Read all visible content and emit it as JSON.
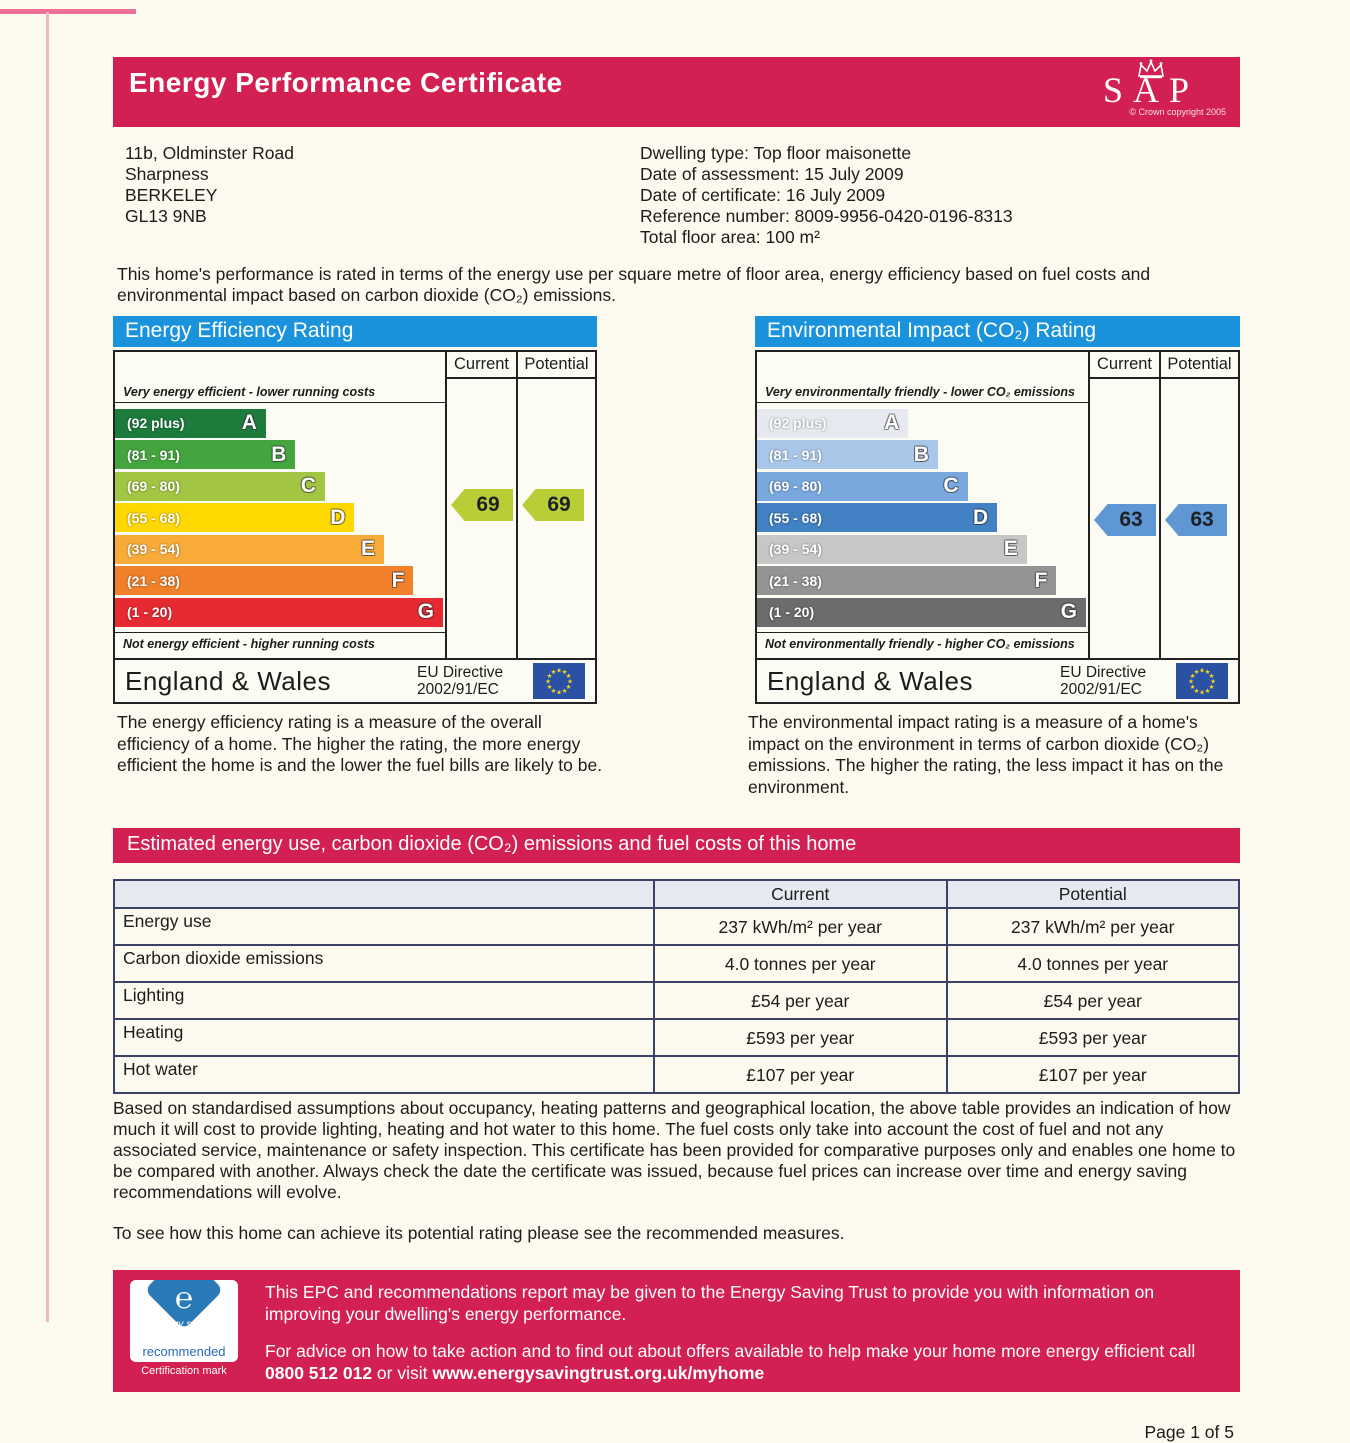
{
  "header": {
    "title": "Energy Performance Certificate",
    "sap_letters": "SAP",
    "copyright": "© Crown copyright 2005",
    "bg_color": "#d32053"
  },
  "property": {
    "address_lines": [
      "11b, Oldminster Road",
      "Sharpness",
      "BERKELEY",
      "GL13 9NB"
    ],
    "details": [
      "Dwelling type: Top floor maisonette",
      "Date of assessment: 15 July 2009",
      "Date of certificate: 16 July 2009",
      "Reference number: 8009-9956-0420-0196-8313",
      "Total floor area: 100 m²"
    ]
  },
  "intro": "This home's performance is rated in terms of the energy use per square metre of floor area, energy efficiency based on fuel costs and environmental impact based on carbon dioxide (CO₂) emissions.",
  "eer_chart": {
    "title": "Energy Efficiency Rating",
    "title_color": "#1a93dc",
    "columns": [
      "Current",
      "Potential"
    ],
    "top_note": "Very energy efficient - lower running costs",
    "bottom_note": "Not energy efficient - higher running costs",
    "bands": [
      {
        "range": "(92 plus)",
        "letter": "A",
        "color": "#1d7c3c",
        "width_pct": 46
      },
      {
        "range": "(81 - 91)",
        "letter": "B",
        "color": "#44a53f",
        "width_pct": 55
      },
      {
        "range": "(69 - 80)",
        "letter": "C",
        "color": "#a2c543",
        "width_pct": 64
      },
      {
        "range": "(55 - 68)",
        "letter": "D",
        "color": "#fed800",
        "width_pct": 73
      },
      {
        "range": "(39 - 54)",
        "letter": "E",
        "color": "#f8ab39",
        "width_pct": 82
      },
      {
        "range": "(21 - 38)",
        "letter": "F",
        "color": "#f0802a",
        "width_pct": 91
      },
      {
        "range": "(1 - 20)",
        "letter": "G",
        "color": "#e72a32",
        "width_pct": 100
      }
    ],
    "current": {
      "value": "69",
      "color": "#b8cd36",
      "row": 3.0
    },
    "potential": {
      "value": "69",
      "color": "#b8cd36",
      "row": 3.0
    },
    "footer": {
      "region": "England & Wales",
      "directive": "EU Directive 2002/91/EC"
    }
  },
  "eir_chart": {
    "title": "Environmental Impact (CO₂) Rating",
    "title_color": "#1a93dc",
    "columns": [
      "Current",
      "Potential"
    ],
    "top_note": "Very environmentally friendly - lower CO₂ emissions",
    "bottom_note": "Not environmentally friendly - higher CO₂ emissions",
    "bands": [
      {
        "range": "(92 plus)",
        "letter": "A",
        "color": "#e6eaf0",
        "width_pct": 46
      },
      {
        "range": "(81 - 91)",
        "letter": "B",
        "color": "#a9c7e8",
        "width_pct": 55
      },
      {
        "range": "(69 - 80)",
        "letter": "C",
        "color": "#79a8de",
        "width_pct": 64
      },
      {
        "range": "(55 - 68)",
        "letter": "D",
        "color": "#4181c4",
        "width_pct": 73
      },
      {
        "range": "(39 - 54)",
        "letter": "E",
        "color": "#c7c7c7",
        "width_pct": 82
      },
      {
        "range": "(21 - 38)",
        "letter": "F",
        "color": "#949494",
        "width_pct": 91
      },
      {
        "range": "(1 - 20)",
        "letter": "G",
        "color": "#6c6c6c",
        "width_pct": 100
      }
    ],
    "current": {
      "value": "63",
      "color": "#5e97d3",
      "row": 3.45
    },
    "potential": {
      "value": "63",
      "color": "#5e97d3",
      "row": 3.45
    },
    "footer": {
      "region": "England & Wales",
      "directive": "EU Directive 2002/91/EC"
    }
  },
  "eer_description": "The energy efficiency rating is a measure of the overall efficiency of a home. The higher the rating, the more energy efficient the home is and the lower the fuel bills are likely to be.",
  "eir_description": "The environmental impact rating is a measure of a home's impact on the environment in terms of carbon dioxide (CO₂) emissions. The higher the rating, the less impact it has on the environment.",
  "costs": {
    "banner": "Estimated energy use, carbon dioxide (CO₂) emissions and fuel costs of this home",
    "table": {
      "columns": [
        "",
        "Current",
        "Potential"
      ],
      "rows": [
        {
          "label": "Energy use",
          "current": "237 kWh/m² per year",
          "potential": "237 kWh/m² per year"
        },
        {
          "label": "Carbon dioxide emissions",
          "current": "4.0 tonnes per year",
          "potential": "4.0 tonnes per year"
        },
        {
          "label": "Lighting",
          "current": "£54 per year",
          "potential": "£54 per year"
        },
        {
          "label": "Heating",
          "current": "£593 per year",
          "potential": "£593 per year"
        },
        {
          "label": "Hot water",
          "current": "£107 per year",
          "potential": "£107 per year"
        }
      ]
    },
    "note": "Based on standardised assumptions about occupancy, heating patterns and geographical location, the above table provides an indication of how much it will cost to provide lighting, heating and hot water to this home. The fuel costs only take into account the cost of fuel and not any associated service, maintenance or safety inspection. This certificate has been provided for comparative purposes only and enables one home to be compared with another. Always check the date the certificate was issued, because fuel prices can increase over time and energy saving recommendations will evolve.",
    "see_measures": "To see how this home can achieve its potential rating please see the recommended measures."
  },
  "footer_banner": {
    "logo": {
      "line1": "energy saving",
      "line2": "recommended",
      "line3": "Certification mark"
    },
    "para1": "This EPC and recommendations report may be given to the Energy Saving Trust to provide you with information on improving your dwelling's energy performance.",
    "para2_prefix": "For advice on how to take action and to find out about offers available to help make your home more energy efficient call ",
    "phone": "0800 512 012",
    "para2_mid": " or visit ",
    "url": "www.energysavingtrust.org.uk/myhome"
  },
  "page_number": "Page 1 of 5",
  "colors": {
    "banner_pink": "#d32053",
    "chart_title_blue": "#1a93dc",
    "table_border": "#3b4266",
    "eu_flag_blue": "#2b51a3",
    "eu_star_yellow": "#f8d81c"
  }
}
